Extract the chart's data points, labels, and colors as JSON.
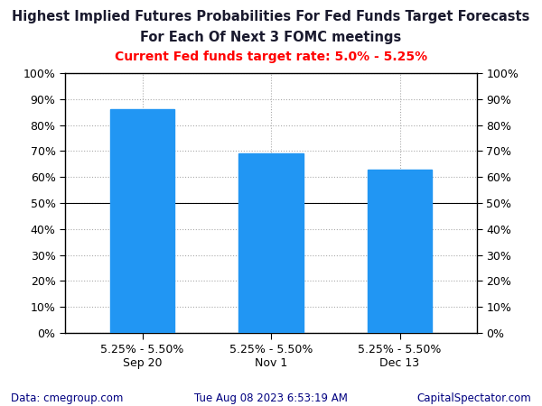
{
  "title_line1": "Highest Implied Futures Probabilities For Fed Funds Target Forecasts",
  "title_line2": "For Each Of Next 3 FOMC meetings",
  "subtitle": "Current Fed funds target rate: 5.0% - 5.25%",
  "title_color": "#1a1a2e",
  "subtitle_color": "#FF0000",
  "categories": [
    "Sep 20",
    "Nov 1",
    "Dec 13"
  ],
  "xtick_labels_top": [
    "5.25% - 5.50%",
    "5.25% - 5.50%",
    "5.25% - 5.50%"
  ],
  "values": [
    0.86,
    0.69,
    0.63
  ],
  "bar_color": "#2196F3",
  "bar_edge_color": "#2196F3",
  "ylim": [
    0,
    1.0
  ],
  "ytick_values": [
    0.0,
    0.1,
    0.2,
    0.3,
    0.4,
    0.5,
    0.6,
    0.7,
    0.8,
    0.9,
    1.0
  ],
  "ytick_labels": [
    "0%",
    "10%",
    "20%",
    "30%",
    "40%",
    "50%",
    "60%",
    "70%",
    "80%",
    "90%",
    "100%"
  ],
  "grid_color": "#AAAAAA",
  "grid_style": ":",
  "background_color": "#FFFFFF",
  "footer_left": "Data: cmegroup.com",
  "footer_center": "Tue Aug 08 2023 6:53:19 AM",
  "footer_right": "CapitalSpectator.com",
  "footer_color": "#000080",
  "tick_label_color": "#000000",
  "title_fontsize": 10.5,
  "subtitle_fontsize": 10,
  "tick_fontsize": 9,
  "xtick_fontsize": 9,
  "footer_fontsize": 8.5
}
